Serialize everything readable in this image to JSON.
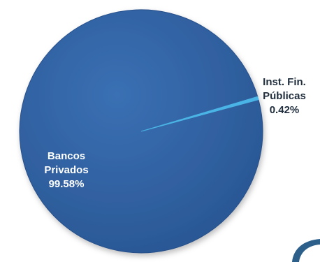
{
  "chart_data": {
    "type": "pie",
    "title": "",
    "slices": [
      {
        "label_lines": [
          "Bancos",
          "Privados"
        ],
        "value_label": "99.58%",
        "value": 99.58,
        "color": "#2f5f9f"
      },
      {
        "label_lines": [
          "Inst. Fin.",
          "Públicas"
        ],
        "value_label": "0.42%",
        "value": 0.42,
        "color": "#4bb4e6"
      }
    ]
  },
  "decoration": {
    "logo_icon": "curved-swoosh-logo-icon",
    "logo_color": "#2c5f8a"
  }
}
